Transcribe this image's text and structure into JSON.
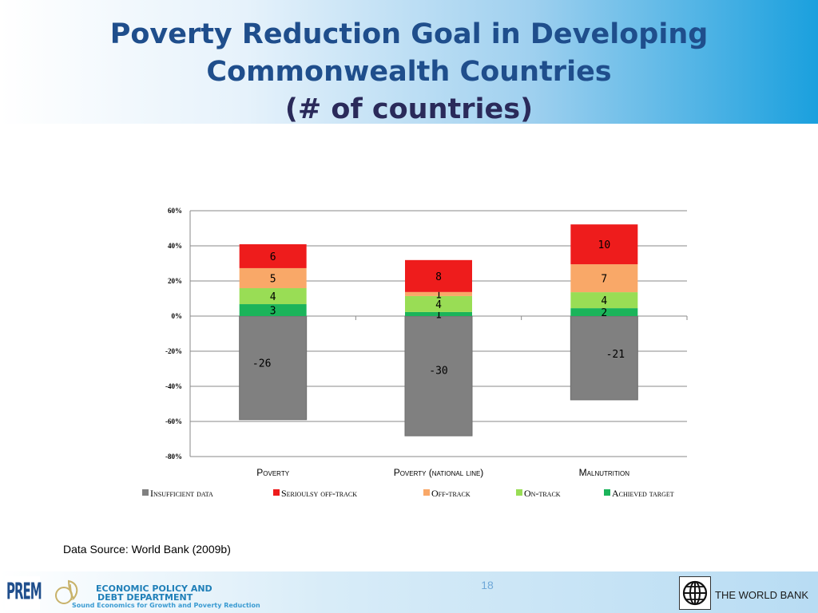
{
  "slide": {
    "title_line1": "Poverty Reduction Goal in Developing",
    "title_line2": "Commonwealth Countries",
    "title_line3": "(# of countries)",
    "source": "Data Source: World Bank (2009b)",
    "slide_number": "18",
    "footer": {
      "prem": "PREM",
      "dept_line1": "ECONOMIC POLICY AND",
      "dept_line2": "DEBT DEPARTMENT",
      "dept_tagline": "Sound Economics for Growth and Poverty Reduction",
      "world_bank": "THE WORLD BANK"
    }
  },
  "chart_data": {
    "type": "bar",
    "stacked": true,
    "categories": [
      "Poverty",
      "Poverty (national line)",
      "Malnutrition"
    ],
    "ylim": [
      -80,
      60
    ],
    "yticks": [
      60,
      40,
      20,
      0,
      -20,
      -40,
      -60,
      -80
    ],
    "ytick_labels": [
      "60%",
      "40%",
      "20%",
      "0%",
      "-20%",
      "-40%",
      "-60%",
      "-80%"
    ],
    "grid": true,
    "legend_position": "bottom",
    "series": [
      {
        "name": "Insufficient data",
        "color": "#808080",
        "values": [
          -59,
          -68.2,
          -47.7
        ],
        "labels": [
          "-26",
          "-30",
          "-21"
        ]
      },
      {
        "name": "Achieved target",
        "color": "#1bb45a",
        "values": [
          6.8,
          2.3,
          4.5
        ],
        "labels": [
          "3",
          "1",
          "2"
        ]
      },
      {
        "name": "On-track",
        "color": "#99dd55",
        "values": [
          9.1,
          9.1,
          9.1
        ],
        "labels": [
          "4",
          "4",
          "4"
        ]
      },
      {
        "name": "Off-track",
        "color": "#f9a868",
        "values": [
          11.4,
          2.3,
          15.9
        ],
        "labels": [
          "5",
          "1",
          "7"
        ]
      },
      {
        "name": "Serioulsy off-track",
        "color": "#ee1c1c",
        "values": [
          13.6,
          18.2,
          22.7
        ],
        "labels": [
          "6",
          "8",
          "10"
        ]
      }
    ]
  }
}
